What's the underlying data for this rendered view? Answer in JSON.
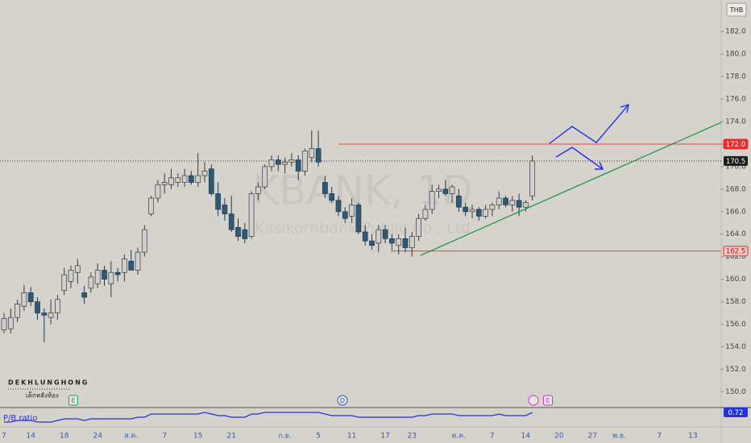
{
  "chart_data": {
    "type": "candlestick",
    "watermark": "KBANK, 1D",
    "watermark_sub": "Kasikornbank Public Co., Ltd",
    "currency": "THB",
    "brand": "DEKHLUNGHONG",
    "brand_sub": "เด็กหลังห้อง",
    "up_color": "#cfcfcf",
    "down_color": "#2e5a78",
    "categories": [
      "7",
      null,
      null,
      null,
      "14",
      null,
      null,
      null,
      null,
      "18",
      null,
      null,
      null,
      null,
      "24",
      null,
      null,
      null,
      null,
      "ส.ค.",
      null,
      null,
      null,
      null,
      "7",
      null,
      null,
      null,
      null,
      "15",
      null,
      null,
      null,
      null,
      "21",
      null,
      null,
      null,
      null,
      null,
      null,
      null,
      "ก.ย.",
      null,
      null,
      null,
      null,
      "5",
      null,
      null,
      null,
      null,
      "11",
      null,
      null,
      null,
      null,
      "17",
      null,
      null,
      null,
      "23",
      null,
      null,
      null,
      null,
      null,
      null,
      "ต.ค.",
      null,
      null,
      null,
      null,
      "7",
      null,
      null,
      null,
      null,
      "14",
      null,
      null,
      null,
      null,
      "20",
      null,
      null,
      null,
      null,
      "27",
      null,
      null,
      null,
      "พ.ย.",
      null,
      null,
      null,
      null,
      null,
      "7",
      null,
      null,
      null,
      null,
      "13",
      null,
      null,
      null
    ],
    "open": [
      155.5,
      155.6,
      156.6,
      157.6,
      158.8,
      158,
      157,
      156.6,
      157,
      159,
      159.8,
      160.6,
      158.8,
      159.2,
      159.6,
      160.8,
      159.6,
      160.6,
      160.6,
      161.6,
      160.8,
      162.4,
      165.8,
      167.2,
      168.4,
      168.4,
      168.6,
      168.6,
      169.2,
      168.6,
      169.2,
      169.8,
      167.6,
      166.6,
      165.8,
      164.6,
      164.4,
      163.8,
      167.6,
      168.2,
      170,
      170.6,
      170.2,
      170.4,
      170.6,
      169.6,
      170.8,
      171.6,
      168.6,
      167.6,
      167,
      166,
      165.6,
      166.6,
      164.2,
      163.4,
      163.2,
      164.4,
      163.6,
      163,
      163.6,
      162.8,
      163.8,
      165.4,
      166.2,
      167.8,
      168,
      167.6,
      167.4,
      166.4,
      166,
      166.2,
      165.6,
      166.2,
      166.6,
      167.2,
      166.6,
      167,
      166.4,
      167.4,
      null,
      null,
      null,
      null,
      null,
      null,
      null,
      null,
      null,
      null,
      null,
      null,
      null,
      null,
      null,
      null,
      null,
      null,
      null,
      null,
      null,
      null,
      null,
      null,
      null,
      null,
      null
    ],
    "high": [
      157,
      157.4,
      158.2,
      159.5,
      159.3,
      158.4,
      157.4,
      158.2,
      158.6,
      161,
      161.2,
      161.8,
      159.4,
      160.6,
      161.4,
      161.2,
      161.6,
      161,
      162.2,
      162.6,
      162.8,
      164.8,
      167.4,
      168.8,
      169.4,
      169.8,
      169.4,
      169.8,
      169.6,
      171.2,
      170.4,
      170.2,
      168.6,
      167.2,
      167.4,
      165.4,
      165,
      167.8,
      168.6,
      170.2,
      171,
      171,
      170.8,
      171.2,
      171,
      171.6,
      173.2,
      173.2,
      169.2,
      168.2,
      167.4,
      166.4,
      167.2,
      166.8,
      164.8,
      164,
      164.8,
      164.8,
      164,
      164,
      164.6,
      164.2,
      165.8,
      166.6,
      168.4,
      168.4,
      168.8,
      168.4,
      168,
      166.8,
      166.6,
      166.4,
      166.6,
      166.8,
      167.8,
      167.4,
      167.4,
      167.6,
      167,
      171,
      null,
      null,
      null,
      null,
      null,
      null,
      null,
      null,
      null,
      null,
      null,
      null,
      null,
      null,
      null,
      null,
      null,
      null,
      null,
      null,
      null,
      null,
      null,
      null,
      null,
      null,
      null
    ],
    "low": [
      155.2,
      155.2,
      156.2,
      157.2,
      157.6,
      156.4,
      154.4,
      156,
      156.4,
      158.6,
      159.2,
      159.6,
      157.8,
      158.8,
      159.2,
      159.4,
      158.4,
      159.8,
      159.8,
      160.8,
      160.4,
      162,
      165.6,
      166.8,
      167.6,
      168,
      168.2,
      168.2,
      168.4,
      168.2,
      168.6,
      167.4,
      165.6,
      165.2,
      164.2,
      163.4,
      163.2,
      163.6,
      167,
      168,
      169.6,
      169.6,
      169.4,
      170,
      168.8,
      169.2,
      170.4,
      170,
      167.2,
      166.8,
      165.6,
      165,
      165,
      164,
      163,
      162.6,
      162.4,
      163.2,
      162.6,
      162.2,
      162.4,
      162,
      163.4,
      165.2,
      165.8,
      167.2,
      167.4,
      166.8,
      166,
      165.6,
      165.4,
      165.2,
      165.4,
      165.6,
      166.2,
      166.4,
      166,
      165.6,
      166,
      167,
      null,
      null,
      null,
      null,
      null,
      null,
      null,
      null,
      null,
      null,
      null,
      null,
      null,
      null,
      null,
      null,
      null,
      null,
      null,
      null,
      null,
      null,
      null,
      null,
      null,
      null,
      null
    ],
    "close": [
      156.5,
      156.6,
      157.8,
      158.8,
      158,
      157,
      156.8,
      157,
      158.2,
      160.4,
      160.8,
      161.2,
      158.4,
      160.2,
      160.8,
      160,
      160.6,
      160.4,
      161.8,
      160.8,
      162.4,
      164.4,
      167.2,
      168.4,
      168.6,
      169,
      169,
      169.2,
      168.6,
      169.2,
      169.6,
      167.6,
      166.2,
      165.8,
      164.4,
      163.8,
      163.6,
      167.6,
      168.2,
      170,
      170.6,
      170.2,
      170.4,
      170.6,
      169.6,
      171.4,
      171.6,
      170.4,
      167.6,
      167,
      166,
      165.4,
      166.6,
      164.2,
      163.4,
      163,
      164.4,
      163.6,
      163.2,
      163.6,
      162.8,
      163.8,
      165.4,
      166.2,
      167.8,
      168,
      167.6,
      168.2,
      166.4,
      166,
      166.2,
      165.6,
      166.2,
      166.6,
      167.2,
      166.6,
      167,
      166.4,
      166.8,
      170.5,
      null,
      null,
      null,
      null,
      null,
      null,
      null,
      null,
      null,
      null,
      null,
      null,
      null,
      null,
      null,
      null,
      null,
      null,
      null,
      null,
      null,
      null,
      null,
      null,
      null,
      null,
      null
    ],
    "ylim": [
      148.6,
      184.8
    ],
    "yticks": [
      {
        "value": 150,
        "label": "150.0"
      },
      {
        "value": 152,
        "label": "152.0"
      },
      {
        "value": 154,
        "label": "154.0"
      },
      {
        "value": 156,
        "label": "156.0"
      },
      {
        "value": 158,
        "label": "158.0"
      },
      {
        "value": 160,
        "label": "160.0"
      },
      {
        "value": 162,
        "label": "162.0"
      },
      {
        "value": 164,
        "label": "164.0"
      },
      {
        "value": 166,
        "label": "166.0"
      },
      {
        "value": 168,
        "label": "168.0"
      },
      {
        "value": 170,
        "label": "170.0"
      },
      {
        "value": 172,
        "label": "172.0"
      },
      {
        "value": 174,
        "label": "174.0"
      },
      {
        "value": 176,
        "label": "176.0"
      },
      {
        "value": 178,
        "label": "178.0"
      },
      {
        "value": 180,
        "label": "180.0"
      },
      {
        "value": 182,
        "label": "182.0"
      }
    ],
    "last_price": {
      "value": 170.5,
      "label": "170.5"
    },
    "levels": [
      {
        "value": 172,
        "label": "172.0"
      },
      {
        "value": 162.5,
        "label": "162.5"
      }
    ],
    "events": [
      "E",
      "D",
      "E"
    ],
    "pb": {
      "name": "P/B ratio",
      "color": "#2233dd",
      "ylim": [
        0.64,
        0.74
      ],
      "last_label": "0.72",
      "values": [
        0.66,
        0.66,
        0.67,
        0.67,
        0.67,
        0.66,
        0.66,
        0.66,
        0.67,
        0.68,
        0.68,
        0.68,
        0.67,
        0.68,
        0.68,
        0.68,
        0.68,
        0.68,
        0.68,
        0.68,
        0.69,
        0.69,
        0.71,
        0.71,
        0.71,
        0.71,
        0.71,
        0.71,
        0.71,
        0.71,
        0.72,
        0.71,
        0.7,
        0.7,
        0.69,
        0.69,
        0.69,
        0.71,
        0.71,
        0.72,
        0.72,
        0.72,
        0.72,
        0.72,
        0.72,
        0.72,
        0.72,
        0.72,
        0.71,
        0.7,
        0.7,
        0.7,
        0.7,
        0.69,
        0.69,
        0.69,
        0.69,
        0.69,
        0.69,
        0.69,
        0.69,
        0.69,
        0.7,
        0.7,
        0.71,
        0.71,
        0.71,
        0.71,
        0.7,
        0.7,
        0.7,
        0.7,
        0.7,
        0.7,
        0.71,
        0.7,
        0.7,
        0.7,
        0.7,
        0.72,
        null,
        null,
        null,
        null,
        null,
        null,
        null,
        null,
        null,
        null,
        null,
        null,
        null,
        null,
        null,
        null,
        null,
        null,
        null,
        null,
        null,
        null,
        null,
        null,
        null,
        null,
        null
      ]
    }
  }
}
